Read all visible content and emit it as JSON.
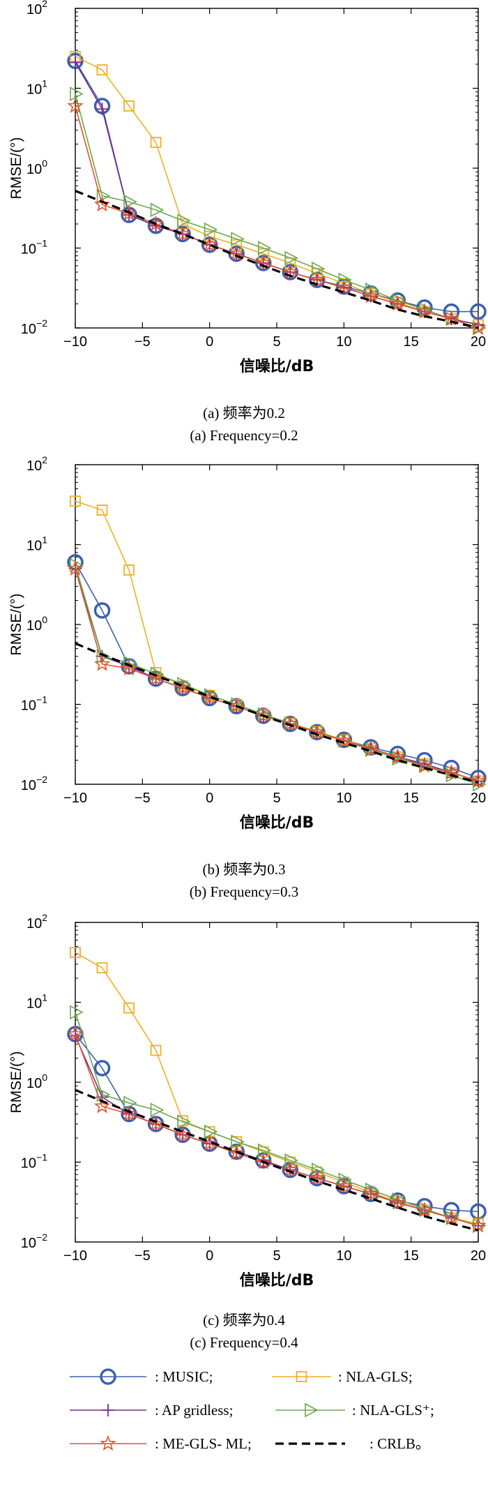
{
  "chart_data": [
    {
      "type": "line",
      "ylabel": "RMSE/(°)",
      "xlabel": "信噪比/dB",
      "caption_cn": "(a) 频率为0.2",
      "caption_en": "(a) Frequency=0.2",
      "xlim": [
        -10,
        20
      ],
      "ylim": [
        0.01,
        100
      ],
      "yscale": "log",
      "xticks": [
        "−10",
        "−5",
        "0",
        "5",
        "10",
        "15",
        "20"
      ],
      "yticks": [
        {
          "base": "10",
          "exp": "−2"
        },
        {
          "base": "10",
          "exp": "−1"
        },
        {
          "base": "10",
          "exp": "0"
        },
        {
          "base": "10",
          "exp": "1"
        },
        {
          "base": "10",
          "exp": "2"
        }
      ],
      "x": [
        -10,
        -8,
        -6,
        -4,
        -2,
        0,
        2,
        4,
        6,
        8,
        10,
        12,
        14,
        16,
        18,
        20
      ],
      "series": [
        {
          "name": "MUSIC",
          "values": [
            22,
            6,
            0.26,
            0.19,
            0.15,
            0.11,
            0.085,
            0.065,
            0.05,
            0.04,
            0.033,
            0.027,
            0.022,
            0.018,
            0.016,
            0.016
          ]
        },
        {
          "name": "NLA-GLS",
          "values": [
            25,
            17,
            6,
            2.1,
            0.2,
            0.14,
            0.11,
            0.085,
            0.065,
            0.048,
            0.036,
            0.027,
            0.021,
            0.016,
            0.013,
            0.011
          ]
        },
        {
          "name": "AP gridless",
          "values": [
            21,
            5.5,
            0.26,
            0.19,
            0.15,
            0.11,
            0.085,
            0.065,
            0.05,
            0.04,
            0.032,
            0.025,
            0.02,
            0.016,
            0.013,
            0.011
          ]
        },
        {
          "name": "NLA-GLS⁺",
          "values": [
            8.5,
            0.45,
            0.38,
            0.3,
            0.22,
            0.17,
            0.13,
            0.1,
            0.075,
            0.055,
            0.04,
            0.03,
            0.022,
            0.017,
            0.013,
            0.01
          ]
        },
        {
          "name": "ME-GLS- ML",
          "values": [
            6,
            0.35,
            0.27,
            0.2,
            0.15,
            0.11,
            0.085,
            0.065,
            0.05,
            0.04,
            0.032,
            0.025,
            0.02,
            0.016,
            0.013,
            0.01
          ]
        },
        {
          "name": "CRLB",
          "values": [
            0.52,
            0.38,
            0.28,
            0.2,
            0.15,
            0.11,
            0.08,
            0.06,
            0.045,
            0.035,
            0.028,
            0.022,
            0.017,
            0.014,
            0.012,
            0.01
          ]
        }
      ]
    },
    {
      "type": "line",
      "ylabel": "RMSE/(°)",
      "xlabel": "信噪比/dB",
      "caption_cn": "(b) 频率为0.3",
      "caption_en": "(b) Frequency=0.3",
      "xlim": [
        -10,
        20
      ],
      "ylim": [
        0.01,
        100
      ],
      "yscale": "log",
      "xticks": [
        "−10",
        "−5",
        "0",
        "5",
        "10",
        "15",
        "20"
      ],
      "yticks": [
        {
          "base": "10",
          "exp": "−2"
        },
        {
          "base": "10",
          "exp": "−1"
        },
        {
          "base": "10",
          "exp": "0"
        },
        {
          "base": "10",
          "exp": "1"
        },
        {
          "base": "10",
          "exp": "2"
        }
      ],
      "x": [
        -10,
        -8,
        -6,
        -4,
        -2,
        0,
        2,
        4,
        6,
        8,
        10,
        12,
        14,
        16,
        18,
        20
      ],
      "series": [
        {
          "name": "MUSIC",
          "values": [
            6,
            1.5,
            0.3,
            0.21,
            0.16,
            0.12,
            0.095,
            0.072,
            0.057,
            0.045,
            0.036,
            0.029,
            0.024,
            0.02,
            0.016,
            0.012
          ]
        },
        {
          "name": "NLA-GLS",
          "values": [
            35,
            27,
            4.8,
            0.25,
            0.17,
            0.13,
            0.1,
            0.075,
            0.058,
            0.046,
            0.036,
            0.028,
            0.022,
            0.018,
            0.014,
            0.011
          ]
        },
        {
          "name": "AP gridless",
          "values": [
            5,
            0.4,
            0.3,
            0.21,
            0.16,
            0.12,
            0.095,
            0.072,
            0.057,
            0.045,
            0.035,
            0.028,
            0.022,
            0.018,
            0.014,
            0.011
          ]
        },
        {
          "name": "NLA-GLS⁺",
          "values": [
            5.5,
            0.4,
            0.33,
            0.24,
            0.18,
            0.13,
            0.1,
            0.075,
            0.058,
            0.045,
            0.035,
            0.027,
            0.021,
            0.017,
            0.013,
            0.01
          ]
        },
        {
          "name": "ME-GLS- ML",
          "values": [
            5,
            0.32,
            0.28,
            0.21,
            0.16,
            0.12,
            0.095,
            0.072,
            0.057,
            0.045,
            0.035,
            0.028,
            0.022,
            0.017,
            0.014,
            0.011
          ]
        },
        {
          "name": "CRLB",
          "values": [
            0.58,
            0.42,
            0.31,
            0.23,
            0.17,
            0.125,
            0.095,
            0.072,
            0.055,
            0.042,
            0.033,
            0.026,
            0.02,
            0.016,
            0.013,
            0.0105
          ]
        }
      ]
    },
    {
      "type": "line",
      "ylabel": "RMSE/(°)",
      "xlabel": "信噪比/dB",
      "caption_cn": "(c) 频率为0.4",
      "caption_en": "(c) Frequency=0.4",
      "xlim": [
        -10,
        20
      ],
      "ylim": [
        0.01,
        100
      ],
      "yscale": "log",
      "xticks": [
        "−10",
        "−5",
        "0",
        "5",
        "10",
        "15",
        "20"
      ],
      "yticks": [
        {
          "base": "10",
          "exp": "−2"
        },
        {
          "base": "10",
          "exp": "−1"
        },
        {
          "base": "10",
          "exp": "0"
        },
        {
          "base": "10",
          "exp": "1"
        },
        {
          "base": "10",
          "exp": "2"
        }
      ],
      "x": [
        -10,
        -8,
        -6,
        -4,
        -2,
        0,
        2,
        4,
        6,
        8,
        10,
        12,
        14,
        16,
        18,
        20
      ],
      "series": [
        {
          "name": "MUSIC",
          "values": [
            4,
            1.5,
            0.4,
            0.3,
            0.22,
            0.17,
            0.135,
            0.105,
            0.08,
            0.063,
            0.05,
            0.04,
            0.033,
            0.028,
            0.025,
            0.024
          ]
        },
        {
          "name": "NLA-GLS",
          "values": [
            42,
            27,
            8.5,
            2.5,
            0.33,
            0.24,
            0.18,
            0.135,
            0.1,
            0.075,
            0.056,
            0.042,
            0.032,
            0.025,
            0.02,
            0.017
          ]
        },
        {
          "name": "AP gridless",
          "values": [
            3.8,
            0.65,
            0.4,
            0.3,
            0.22,
            0.17,
            0.135,
            0.105,
            0.08,
            0.063,
            0.05,
            0.04,
            0.031,
            0.025,
            0.02,
            0.016
          ]
        },
        {
          "name": "NLA-GLS⁺",
          "values": [
            7.5,
            0.7,
            0.55,
            0.45,
            0.32,
            0.24,
            0.18,
            0.14,
            0.105,
            0.08,
            0.06,
            0.045,
            0.034,
            0.026,
            0.02,
            0.016
          ]
        },
        {
          "name": "ME-GLS- ML",
          "values": [
            4,
            0.5,
            0.4,
            0.3,
            0.22,
            0.17,
            0.13,
            0.1,
            0.08,
            0.063,
            0.05,
            0.04,
            0.031,
            0.025,
            0.02,
            0.016
          ]
        },
        {
          "name": "CRLB",
          "values": [
            0.8,
            0.58,
            0.43,
            0.32,
            0.24,
            0.18,
            0.135,
            0.1,
            0.076,
            0.058,
            0.045,
            0.035,
            0.027,
            0.021,
            0.017,
            0.014
          ]
        }
      ]
    }
  ],
  "legend": [
    {
      "key": "MUSIC",
      "label": ": MUSIC;",
      "marker": "circle",
      "color": "#3b5fb0",
      "dashed": false
    },
    {
      "key": "NLA-GLS",
      "label": ": NLA-GLS;",
      "marker": "square",
      "color": "#f0b020",
      "dashed": false
    },
    {
      "key": "AP gridless",
      "label": ": AP gridless;",
      "marker": "plus",
      "color": "#7a2a8c",
      "dashed": false
    },
    {
      "key": "NLA-GLS⁺",
      "label": ": NLA-GLS⁺;",
      "marker": "triangle",
      "color": "#6aa84f",
      "dashed": false
    },
    {
      "key": "ME-GLS- ML",
      "label": ": ME-GLS- ML;",
      "marker": "star",
      "color": "#e0522a",
      "dashed": false
    },
    {
      "key": "CRLB",
      "label": ": CRLB。",
      "marker": "none",
      "color": "#000000",
      "dashed": true
    }
  ],
  "colors": {
    "MUSIC": "#3b5fb0",
    "NLA-GLS": "#f0b020",
    "AP gridless": "#7a2a8c",
    "NLA-GLS⁺": "#6aa84f",
    "ME-GLS- ML": "#e0522a",
    "CRLB": "#000000"
  }
}
